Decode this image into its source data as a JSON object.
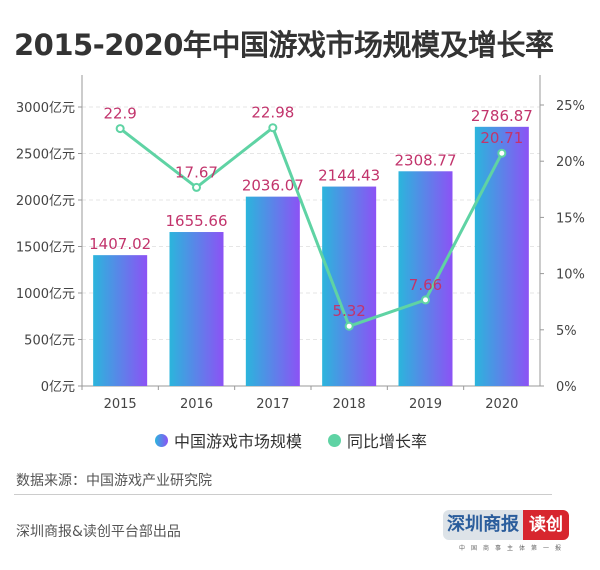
{
  "title": "2015-2020年中国游戏市场规模及增长率",
  "chart_data": {
    "type": "bar+line",
    "categories": [
      "2015",
      "2016",
      "2017",
      "2018",
      "2019",
      "2020"
    ],
    "series": [
      {
        "name": "中国游戏市场规模",
        "type": "bar",
        "axis": "left",
        "values": [
          1407.02,
          1655.66,
          2036.07,
          2144.43,
          2308.77,
          2786.87
        ],
        "labels": [
          "1407.02",
          "1655.66",
          "2036.07",
          "2144.43",
          "2308.77",
          "2786.87"
        ]
      },
      {
        "name": "同比增长率",
        "type": "line",
        "axis": "right",
        "values": [
          22.9,
          17.67,
          22.98,
          5.32,
          7.66,
          20.71
        ],
        "labels": [
          "22.9",
          "17.67",
          "22.98",
          "5.32",
          "7.66",
          "20.71"
        ]
      }
    ],
    "left_axis": {
      "ticks": [
        "0亿元",
        "500亿元",
        "1000亿元",
        "1500亿元",
        "2000亿元",
        "2500亿元",
        "3000亿元"
      ],
      "range": [
        0,
        3000
      ]
    },
    "right_axis": {
      "ticks": [
        "0%",
        "5%",
        "10%",
        "15%",
        "20%",
        "25%"
      ],
      "range": [
        0,
        25
      ]
    },
    "grid": true,
    "legend_position": "bottom",
    "colors": {
      "bar_start": "#2bb5dc",
      "bar_end": "#8c52f5",
      "line": "#5fd3a4",
      "label": "#c2346c"
    }
  },
  "source": "数据来源：中国游戏产业研究院",
  "footer": "深圳商报&读创平台部出品",
  "logo": {
    "main": "深圳商报",
    "badge": "读创",
    "sub": "中国商事主体第一报"
  }
}
